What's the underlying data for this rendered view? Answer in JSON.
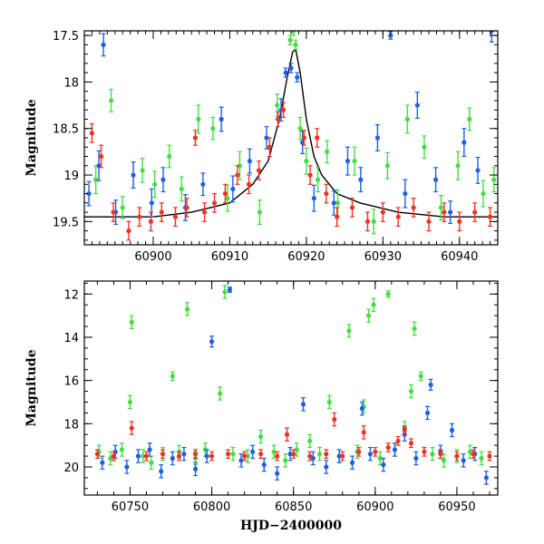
{
  "chart_data": [
    {
      "type": "scatter",
      "panel": "top",
      "ylabel": "Magnitude",
      "xlabel": "",
      "xlim": [
        60891,
        60945
      ],
      "ylim": [
        19.75,
        17.45
      ],
      "y_inverted": true,
      "xticks": [
        60900,
        60910,
        60920,
        60930,
        60940
      ],
      "yticks": [
        17.5,
        18,
        18.5,
        19,
        19.5
      ],
      "ytick_labels": [
        "17.5",
        "18",
        "18.5",
        "19",
        "19.5"
      ],
      "series": [
        {
          "name": "green",
          "color": "#44dd44",
          "x": [
            60892.5,
            60894.5,
            60896.0,
            60898.6,
            60900.2,
            60902.1,
            60903.7,
            60905.9,
            60907.8,
            60909.7,
            60911.3,
            60913.9,
            60916.2,
            60917.9,
            60918.3,
            60918.6,
            60919.2,
            60920.0,
            60921.5,
            60922.7,
            60924.1,
            60926.3,
            60928.8,
            60930.6,
            60933.2,
            60935.4,
            60937.6,
            60939.8,
            60941.3,
            60943.1,
            60944.5
          ],
          "y": [
            19.05,
            18.2,
            19.35,
            18.95,
            19.1,
            18.8,
            19.15,
            18.4,
            18.5,
            19.25,
            18.9,
            19.4,
            18.25,
            17.55,
            17.45,
            17.6,
            18.5,
            18.85,
            19.05,
            18.75,
            19.3,
            18.85,
            19.5,
            18.9,
            18.4,
            18.7,
            19.35,
            18.9,
            18.4,
            19.2,
            19.05
          ],
          "err": [
            0.15,
            0.12,
            0.12,
            0.13,
            0.14,
            0.12,
            0.13,
            0.15,
            0.12,
            0.14,
            0.15,
            0.13,
            0.12,
            0.05,
            0.05,
            0.05,
            0.12,
            0.14,
            0.13,
            0.12,
            0.14,
            0.15,
            0.13,
            0.14,
            0.15,
            0.12,
            0.13,
            0.15,
            0.12,
            0.14,
            0.13
          ]
        },
        {
          "name": "blue",
          "color": "#1f5fe6",
          "x": [
            60891.6,
            60892.9,
            60893.5,
            60895.1,
            60897.4,
            60899.8,
            60901.3,
            60904.2,
            60906.5,
            60908.9,
            60910.4,
            60912.6,
            60914.8,
            60916.7,
            60917.3,
            60918.0,
            60918.8,
            60919.5,
            60921.0,
            60923.6,
            60925.4,
            60927.1,
            60929.3,
            60931.0,
            60932.9,
            60934.5,
            60936.9,
            60938.8,
            60940.6,
            60942.4,
            60944.2
          ],
          "y": [
            19.2,
            18.9,
            17.6,
            19.4,
            19.0,
            19.3,
            19.05,
            19.35,
            19.1,
            18.4,
            19.15,
            18.85,
            18.6,
            18.3,
            17.9,
            17.85,
            17.95,
            18.65,
            19.25,
            19.3,
            18.85,
            19.05,
            18.6,
            17.5,
            19.2,
            18.25,
            19.05,
            19.4,
            18.65,
            18.95,
            17.45
          ],
          "err": [
            0.13,
            0.16,
            0.12,
            0.13,
            0.14,
            0.15,
            0.13,
            0.14,
            0.12,
            0.13,
            0.14,
            0.13,
            0.12,
            0.12,
            0.05,
            0.05,
            0.05,
            0.12,
            0.14,
            0.13,
            0.15,
            0.13,
            0.14,
            0.04,
            0.15,
            0.14,
            0.13,
            0.12,
            0.15,
            0.14,
            0.12
          ]
        },
        {
          "name": "red",
          "color": "#ee3322",
          "x": [
            60892.0,
            60893.2,
            60894.8,
            60896.8,
            60898.2,
            60899.7,
            60901.1,
            60902.9,
            60904.4,
            60905.5,
            60906.7,
            60908.0,
            60909.4,
            60911.0,
            60912.5,
            60913.8,
            60915.2,
            60916.3,
            60917.0,
            60919.7,
            60920.5,
            60921.4,
            60922.6,
            60924.0,
            60926.0,
            60928.0,
            60930.0,
            60932.0,
            60934.0,
            60936.0,
            60938.0,
            60940.0,
            60942.0,
            60944.0
          ],
          "y": [
            18.55,
            18.8,
            19.4,
            19.6,
            19.45,
            19.5,
            19.4,
            19.45,
            19.35,
            18.6,
            19.4,
            19.3,
            19.2,
            19.0,
            19.1,
            18.95,
            18.7,
            18.4,
            18.3,
            18.6,
            19.0,
            18.6,
            19.2,
            19.45,
            19.35,
            19.5,
            19.4,
            19.45,
            19.35,
            19.5,
            19.4,
            19.5,
            19.4,
            19.45
          ],
          "err": [
            0.1,
            0.12,
            0.1,
            0.1,
            0.1,
            0.1,
            0.1,
            0.1,
            0.1,
            0.08,
            0.1,
            0.1,
            0.1,
            0.1,
            0.1,
            0.1,
            0.1,
            0.08,
            0.08,
            0.08,
            0.1,
            0.1,
            0.1,
            0.1,
            0.1,
            0.1,
            0.1,
            0.1,
            0.1,
            0.1,
            0.1,
            0.1,
            0.1,
            0.1
          ]
        }
      ],
      "model_curve": {
        "name": "model",
        "color": "#000000",
        "x": [
          60891,
          60894,
          60900,
          60905,
          60910,
          60913,
          60915,
          60916.5,
          60917.5,
          60918.2,
          60918.6,
          60919.2,
          60920,
          60921,
          60922,
          60924,
          60927,
          60932,
          60938,
          60945
        ],
        "y": [
          19.45,
          19.45,
          19.45,
          19.4,
          19.3,
          19.1,
          18.85,
          18.4,
          17.95,
          17.68,
          17.65,
          17.9,
          18.4,
          18.8,
          19.0,
          19.2,
          19.3,
          19.4,
          19.45,
          19.45
        ]
      }
    },
    {
      "type": "scatter",
      "panel": "bottom",
      "ylabel": "Magnitude",
      "xlabel": "HJD−2400000",
      "xlim": [
        60722,
        60975
      ],
      "ylim": [
        21.3,
        11.4
      ],
      "y_inverted": true,
      "xticks": [
        60750,
        60800,
        60850,
        60900,
        60950
      ],
      "yticks": [
        12,
        14,
        16,
        18,
        20
      ],
      "ytick_labels": [
        "12",
        "14",
        "16",
        "18",
        "20"
      ],
      "series": [
        {
          "name": "green",
          "color": "#44dd44",
          "x": [
            60731,
            60738,
            60745,
            60750,
            60751,
            60758,
            60763,
            60770,
            60776,
            60780,
            60785,
            60790,
            60796,
            60805,
            60808,
            60813,
            60822,
            60830,
            60838,
            60845,
            60852,
            60860,
            60866,
            60872,
            60878,
            60884,
            60889,
            60893,
            60896,
            60899,
            60903,
            60908,
            60912,
            60918,
            60922,
            60924,
            60928,
            60935,
            60942,
            60950,
            60958,
            60965
          ],
          "y": [
            19.3,
            19.6,
            19.2,
            17.0,
            13.3,
            19.5,
            19.8,
            19.4,
            15.8,
            19.3,
            12.7,
            19.6,
            19.2,
            16.6,
            11.9,
            19.4,
            19.5,
            18.6,
            19.3,
            19.7,
            19.2,
            18.8,
            19.4,
            17.0,
            19.5,
            13.7,
            19.3,
            17.2,
            13.0,
            12.5,
            19.6,
            12.0,
            19.2,
            18.2,
            16.5,
            13.6,
            15.8,
            19.4,
            19.7,
            19.5,
            19.3,
            19.6
          ],
          "err": [
            0.3,
            0.3,
            0.3,
            0.3,
            0.3,
            0.3,
            0.3,
            0.3,
            0.2,
            0.3,
            0.3,
            0.3,
            0.3,
            0.3,
            0.3,
            0.3,
            0.3,
            0.3,
            0.3,
            0.3,
            0.3,
            0.3,
            0.3,
            0.3,
            0.3,
            0.3,
            0.3,
            0.3,
            0.3,
            0.3,
            0.3,
            0.15,
            0.3,
            0.3,
            0.3,
            0.3,
            0.2,
            0.3,
            0.3,
            0.3,
            0.3,
            0.3
          ]
        },
        {
          "name": "blue",
          "color": "#1f5fe6",
          "x": [
            60733,
            60741,
            60748,
            60755,
            60762,
            60769,
            60776,
            60783,
            60790,
            60797,
            60800,
            60811,
            60818,
            60825,
            60832,
            60840,
            60848,
            60856,
            60862,
            60870,
            60878,
            60886,
            60892,
            60897,
            60905,
            60912,
            60918,
            60925,
            60932,
            60934,
            60940,
            60947,
            60954,
            60961,
            60968
          ],
          "y": [
            19.8,
            19.3,
            20.0,
            19.5,
            19.2,
            20.2,
            19.6,
            19.4,
            20.1,
            19.5,
            14.2,
            11.8,
            19.7,
            19.3,
            19.9,
            20.3,
            19.4,
            17.1,
            19.6,
            20.0,
            19.5,
            19.8,
            17.3,
            19.4,
            19.9,
            19.2,
            18.5,
            19.6,
            17.5,
            16.2,
            19.3,
            18.3,
            19.7,
            19.4,
            20.5
          ],
          "err": [
            0.3,
            0.3,
            0.3,
            0.3,
            0.3,
            0.3,
            0.3,
            0.3,
            0.3,
            0.3,
            0.25,
            0.12,
            0.3,
            0.3,
            0.3,
            0.3,
            0.3,
            0.3,
            0.3,
            0.3,
            0.3,
            0.3,
            0.3,
            0.3,
            0.3,
            0.3,
            0.3,
            0.3,
            0.3,
            0.25,
            0.3,
            0.3,
            0.3,
            0.3,
            0.3
          ]
        },
        {
          "name": "red",
          "color": "#ee3322",
          "x": [
            60730,
            60740,
            60751,
            60760,
            60770,
            60780,
            60790,
            60800,
            60810,
            60820,
            60830,
            60840,
            60846,
            60850,
            60860,
            60870,
            60875,
            60880,
            60890,
            60893,
            60900,
            60908,
            60914,
            60918,
            60922,
            60930,
            60940,
            60950,
            60960,
            60970
          ],
          "y": [
            19.4,
            19.5,
            18.2,
            19.5,
            19.4,
            19.5,
            19.4,
            19.5,
            19.4,
            19.5,
            19.4,
            19.5,
            18.5,
            19.4,
            19.5,
            19.4,
            17.8,
            19.5,
            19.3,
            18.4,
            19.3,
            19.1,
            18.8,
            18.3,
            18.9,
            19.3,
            19.4,
            19.5,
            19.4,
            19.5
          ],
          "err": [
            0.2,
            0.2,
            0.3,
            0.2,
            0.2,
            0.2,
            0.2,
            0.2,
            0.2,
            0.2,
            0.2,
            0.2,
            0.3,
            0.2,
            0.2,
            0.2,
            0.3,
            0.2,
            0.2,
            0.3,
            0.2,
            0.2,
            0.2,
            0.2,
            0.2,
            0.2,
            0.2,
            0.2,
            0.2,
            0.2
          ]
        }
      ]
    }
  ]
}
